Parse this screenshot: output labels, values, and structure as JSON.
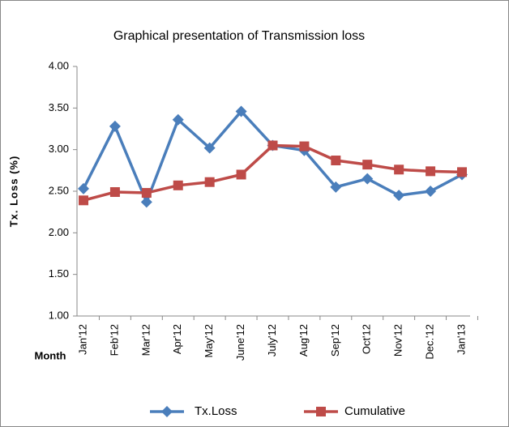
{
  "chart_data": {
    "type": "line",
    "title": "Graphical presentation of Transmission loss",
    "y_label": "Tx. Loss (%)",
    "x_label": "Month",
    "categories": [
      "Jan'12",
      "Feb'12",
      "Mar'12",
      "Apr'12",
      "May'12",
      "June'12",
      "July'12",
      "Aug'12",
      "Sep'12",
      "Oct'12",
      "Nov'12",
      "Dec.'12",
      "Jan'13"
    ],
    "series": [
      {
        "name": "Tx.Loss",
        "color": "#4a7ebb",
        "marker": "diamond",
        "values": [
          2.53,
          3.28,
          2.37,
          3.36,
          3.02,
          3.46,
          3.05,
          2.99,
          2.55,
          2.65,
          2.45,
          2.5,
          2.7
        ]
      },
      {
        "name": "Cumulative",
        "color": "#be4b48",
        "marker": "square",
        "values": [
          2.39,
          2.49,
          2.48,
          2.57,
          2.61,
          2.7,
          3.05,
          3.04,
          2.87,
          2.82,
          2.76,
          2.74,
          2.73
        ]
      }
    ],
    "ylim": [
      1,
      4
    ],
    "yticks": [
      {
        "value": 1,
        "label": "1.00"
      },
      {
        "value": 1.5,
        "label": "1.50"
      },
      {
        "value": 2,
        "label": "2.00"
      },
      {
        "value": 2.5,
        "label": "2.50"
      },
      {
        "value": 3,
        "label": "3.00"
      },
      {
        "value": 3.5,
        "label": "3.50"
      },
      {
        "value": 4,
        "label": "4.00"
      }
    ],
    "legend": "bottom",
    "grid": false
  }
}
